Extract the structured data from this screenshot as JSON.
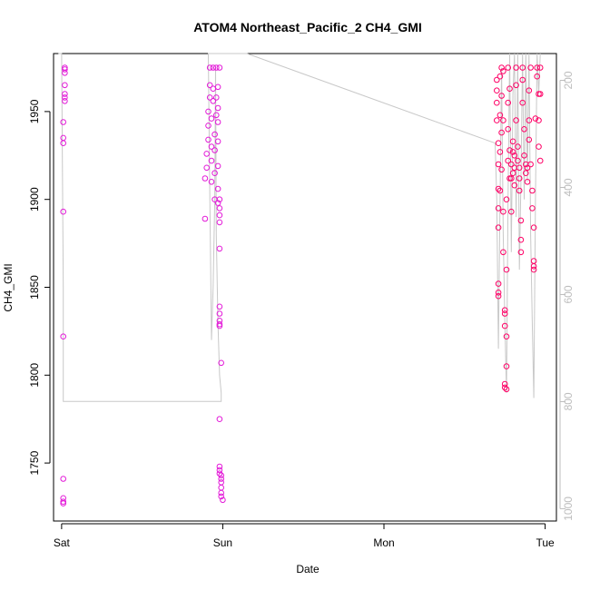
{
  "chart_data": {
    "type": "scatter",
    "title": "ATOM4 Northeast_Pacific_2 CH4_GMI",
    "xlabel": "Date",
    "ylabel": "CH4_GMI",
    "x_ticks": [
      "Sat",
      "Sun",
      "Mon",
      "Tue"
    ],
    "x_tick_values": [
      0,
      1,
      2,
      3
    ],
    "xlim": [
      -0.05,
      3.07
    ],
    "ylim": [
      1717,
      1983
    ],
    "y_ticks": [
      1750,
      1800,
      1850,
      1900,
      1950
    ],
    "y_tick_labels": [
      "1750",
      "1800",
      "1850",
      "1900",
      "1950"
    ],
    "right_axis_ticks": [
      "200",
      "400",
      "600",
      "800",
      "1000"
    ],
    "right_axis_values": [
      200,
      400,
      600,
      800,
      1000
    ],
    "right_axis_range": [
      1023,
      150
    ],
    "grid": false,
    "colors": {
      "point_magenta": "#e31ad8",
      "point_red": "#ff0066",
      "pressure_line": "#c8c8c8",
      "right_axis": "#bdbdbd"
    },
    "series": [
      {
        "values": [
          {
            "x": 0.01,
            "y": 1727
          },
          {
            "x": 0.01,
            "y": 1728
          },
          {
            "x": 0.01,
            "y": 1730
          },
          {
            "x": 0.01,
            "y": 1741
          },
          {
            "x": 0.01,
            "y": 1822
          },
          {
            "x": 0.01,
            "y": 1893
          },
          {
            "x": 0.01,
            "y": 1932
          },
          {
            "x": 0.01,
            "y": 1935
          },
          {
            "x": 0.01,
            "y": 1944
          },
          {
            "x": 0.02,
            "y": 1956
          },
          {
            "x": 0.02,
            "y": 1958
          },
          {
            "x": 0.02,
            "y": 1960
          },
          {
            "x": 0.02,
            "y": 1965
          },
          {
            "x": 0.02,
            "y": 1972
          },
          {
            "x": 0.02,
            "y": 1974
          },
          {
            "x": 0.02,
            "y": 1975
          },
          {
            "x": 0.89,
            "y": 1889
          },
          {
            "x": 0.89,
            "y": 1912
          },
          {
            "x": 0.9,
            "y": 1918
          },
          {
            "x": 0.9,
            "y": 1926
          },
          {
            "x": 0.91,
            "y": 1934
          },
          {
            "x": 0.91,
            "y": 1942
          },
          {
            "x": 0.91,
            "y": 1950
          },
          {
            "x": 0.92,
            "y": 1958
          },
          {
            "x": 0.92,
            "y": 1965
          },
          {
            "x": 0.92,
            "y": 1975
          },
          {
            "x": 0.93,
            "y": 1910
          },
          {
            "x": 0.93,
            "y": 1922
          },
          {
            "x": 0.93,
            "y": 1930
          },
          {
            "x": 0.93,
            "y": 1946
          },
          {
            "x": 0.94,
            "y": 1956
          },
          {
            "x": 0.94,
            "y": 1963
          },
          {
            "x": 0.94,
            "y": 1975
          },
          {
            "x": 0.95,
            "y": 1900
          },
          {
            "x": 0.95,
            "y": 1915
          },
          {
            "x": 0.95,
            "y": 1928
          },
          {
            "x": 0.95,
            "y": 1937
          },
          {
            "x": 0.96,
            "y": 1948
          },
          {
            "x": 0.96,
            "y": 1958
          },
          {
            "x": 0.96,
            "y": 1975
          },
          {
            "x": 0.97,
            "y": 1898
          },
          {
            "x": 0.97,
            "y": 1906
          },
          {
            "x": 0.97,
            "y": 1919
          },
          {
            "x": 0.97,
            "y": 1933
          },
          {
            "x": 0.97,
            "y": 1944
          },
          {
            "x": 0.97,
            "y": 1952
          },
          {
            "x": 0.97,
            "y": 1964
          },
          {
            "x": 0.98,
            "y": 1975
          },
          {
            "x": 0.98,
            "y": 1887
          },
          {
            "x": 0.98,
            "y": 1891
          },
          {
            "x": 0.98,
            "y": 1895
          },
          {
            "x": 0.98,
            "y": 1900
          },
          {
            "x": 0.98,
            "y": 1872
          },
          {
            "x": 0.98,
            "y": 1839
          },
          {
            "x": 0.98,
            "y": 1835
          },
          {
            "x": 0.98,
            "y": 1831
          },
          {
            "x": 0.98,
            "y": 1829
          },
          {
            "x": 0.98,
            "y": 1828
          },
          {
            "x": 0.99,
            "y": 1807
          },
          {
            "x": 0.98,
            "y": 1775
          },
          {
            "x": 0.98,
            "y": 1748
          },
          {
            "x": 0.98,
            "y": 1746
          },
          {
            "x": 0.98,
            "y": 1744
          },
          {
            "x": 0.99,
            "y": 1743
          },
          {
            "x": 0.99,
            "y": 1741
          },
          {
            "x": 0.99,
            "y": 1739
          },
          {
            "x": 0.99,
            "y": 1736
          },
          {
            "x": 0.99,
            "y": 1733
          },
          {
            "x": 0.99,
            "y": 1731
          },
          {
            "x": 1.0,
            "y": 1729
          },
          {
            "x": 2.7,
            "y": 1968
          },
          {
            "x": 2.7,
            "y": 1962
          },
          {
            "x": 2.7,
            "y": 1955
          },
          {
            "x": 2.7,
            "y": 1945
          },
          {
            "x": 2.71,
            "y": 1932
          },
          {
            "x": 2.71,
            "y": 1920
          },
          {
            "x": 2.71,
            "y": 1906
          },
          {
            "x": 2.71,
            "y": 1895
          },
          {
            "x": 2.71,
            "y": 1884
          },
          {
            "x": 2.71,
            "y": 1852
          },
          {
            "x": 2.71,
            "y": 1847
          },
          {
            "x": 2.71,
            "y": 1845
          },
          {
            "x": 2.72,
            "y": 1970
          },
          {
            "x": 2.72,
            "y": 1948
          },
          {
            "x": 2.72,
            "y": 1927
          },
          {
            "x": 2.72,
            "y": 1905
          },
          {
            "x": 2.73,
            "y": 1975
          },
          {
            "x": 2.73,
            "y": 1959
          },
          {
            "x": 2.73,
            "y": 1938
          },
          {
            "x": 2.73,
            "y": 1917
          },
          {
            "x": 2.74,
            "y": 1973
          },
          {
            "x": 2.74,
            "y": 1945
          },
          {
            "x": 2.74,
            "y": 1893
          },
          {
            "x": 2.74,
            "y": 1870
          },
          {
            "x": 2.75,
            "y": 1837
          },
          {
            "x": 2.75,
            "y": 1835
          },
          {
            "x": 2.75,
            "y": 1828
          },
          {
            "x": 2.75,
            "y": 1795
          },
          {
            "x": 2.75,
            "y": 1793
          },
          {
            "x": 2.76,
            "y": 1792
          },
          {
            "x": 2.76,
            "y": 1805
          },
          {
            "x": 2.76,
            "y": 1822
          },
          {
            "x": 2.76,
            "y": 1860
          },
          {
            "x": 2.76,
            "y": 1900
          },
          {
            "x": 2.77,
            "y": 1922
          },
          {
            "x": 2.77,
            "y": 1940
          },
          {
            "x": 2.77,
            "y": 1955
          },
          {
            "x": 2.77,
            "y": 1975
          },
          {
            "x": 2.78,
            "y": 1963
          },
          {
            "x": 2.78,
            "y": 1928
          },
          {
            "x": 2.78,
            "y": 1912
          },
          {
            "x": 2.79,
            "y": 1893
          },
          {
            "x": 2.79,
            "y": 1912
          },
          {
            "x": 2.79,
            "y": 1920
          },
          {
            "x": 2.8,
            "y": 1915
          },
          {
            "x": 2.8,
            "y": 1927
          },
          {
            "x": 2.8,
            "y": 1933
          },
          {
            "x": 2.81,
            "y": 1908
          },
          {
            "x": 2.81,
            "y": 1918
          },
          {
            "x": 2.81,
            "y": 1925
          },
          {
            "x": 2.82,
            "y": 1945
          },
          {
            "x": 2.82,
            "y": 1965
          },
          {
            "x": 2.82,
            "y": 1975
          },
          {
            "x": 2.83,
            "y": 1930
          },
          {
            "x": 2.83,
            "y": 1922
          },
          {
            "x": 2.84,
            "y": 1918
          },
          {
            "x": 2.84,
            "y": 1912
          },
          {
            "x": 2.84,
            "y": 1905
          },
          {
            "x": 2.85,
            "y": 1888
          },
          {
            "x": 2.85,
            "y": 1877
          },
          {
            "x": 2.85,
            "y": 1870
          },
          {
            "x": 2.86,
            "y": 1955
          },
          {
            "x": 2.86,
            "y": 1968
          },
          {
            "x": 2.86,
            "y": 1975
          },
          {
            "x": 2.87,
            "y": 1940
          },
          {
            "x": 2.87,
            "y": 1925
          },
          {
            "x": 2.88,
            "y": 1920
          },
          {
            "x": 2.88,
            "y": 1915
          },
          {
            "x": 2.89,
            "y": 1910
          },
          {
            "x": 2.89,
            "y": 1918
          },
          {
            "x": 2.9,
            "y": 1934
          },
          {
            "x": 2.9,
            "y": 1945
          },
          {
            "x": 2.9,
            "y": 1962
          },
          {
            "x": 2.91,
            "y": 1975
          },
          {
            "x": 2.91,
            "y": 1920
          },
          {
            "x": 2.92,
            "y": 1905
          },
          {
            "x": 2.92,
            "y": 1895
          },
          {
            "x": 2.93,
            "y": 1884
          },
          {
            "x": 2.93,
            "y": 1865
          },
          {
            "x": 2.93,
            "y": 1862
          },
          {
            "x": 2.93,
            "y": 1860
          },
          {
            "x": 2.94,
            "y": 1946
          },
          {
            "x": 2.95,
            "y": 1975
          },
          {
            "x": 2.95,
            "y": 1970
          },
          {
            "x": 2.96,
            "y": 1960
          },
          {
            "x": 2.96,
            "y": 1945
          },
          {
            "x": 2.96,
            "y": 1930
          },
          {
            "x": 2.97,
            "y": 1922
          },
          {
            "x": 2.97,
            "y": 1975
          },
          {
            "x": 2.97,
            "y": 1960
          }
        ]
      }
    ],
    "pressure_line": [
      {
        "x": -0.02,
        "y": 1983
      },
      {
        "x": 0.0,
        "y": 1983
      },
      {
        "x": 0.01,
        "y": 1850
      },
      {
        "x": 0.01,
        "y": 1785
      },
      {
        "x": 0.99,
        "y": 1785
      },
      {
        "x": 0.99,
        "y": 1790
      },
      {
        "x": 0.98,
        "y": 1800
      },
      {
        "x": 0.97,
        "y": 1830
      },
      {
        "x": 0.96,
        "y": 1880
      },
      {
        "x": 0.955,
        "y": 1975
      },
      {
        "x": 0.95,
        "y": 1900
      },
      {
        "x": 0.94,
        "y": 1850
      },
      {
        "x": 0.93,
        "y": 1820
      },
      {
        "x": 0.92,
        "y": 1900
      },
      {
        "x": 0.91,
        "y": 1983
      },
      {
        "x": 1.15,
        "y": 1983
      },
      {
        "x": 2.69,
        "y": 1932
      },
      {
        "x": 2.7,
        "y": 1900
      },
      {
        "x": 2.71,
        "y": 1815
      },
      {
        "x": 2.72,
        "y": 1900
      },
      {
        "x": 2.73,
        "y": 1975
      },
      {
        "x": 2.74,
        "y": 1880
      },
      {
        "x": 2.75,
        "y": 1830
      },
      {
        "x": 2.76,
        "y": 1790
      },
      {
        "x": 2.77,
        "y": 1900
      },
      {
        "x": 2.78,
        "y": 1983
      },
      {
        "x": 2.79,
        "y": 1870
      },
      {
        "x": 2.8,
        "y": 1960
      },
      {
        "x": 2.81,
        "y": 1983
      },
      {
        "x": 2.82,
        "y": 1890
      },
      {
        "x": 2.83,
        "y": 1983
      },
      {
        "x": 2.84,
        "y": 1860
      },
      {
        "x": 2.85,
        "y": 1910
      },
      {
        "x": 2.86,
        "y": 1983
      },
      {
        "x": 2.87,
        "y": 1900
      },
      {
        "x": 2.88,
        "y": 1983
      },
      {
        "x": 2.89,
        "y": 1910
      },
      {
        "x": 2.9,
        "y": 1983
      },
      {
        "x": 2.91,
        "y": 1880
      },
      {
        "x": 2.92,
        "y": 1830
      },
      {
        "x": 2.93,
        "y": 1787
      },
      {
        "x": 2.94,
        "y": 1900
      },
      {
        "x": 2.95,
        "y": 1983
      },
      {
        "x": 2.96,
        "y": 1960
      },
      {
        "x": 2.97,
        "y": 1983
      }
    ]
  }
}
